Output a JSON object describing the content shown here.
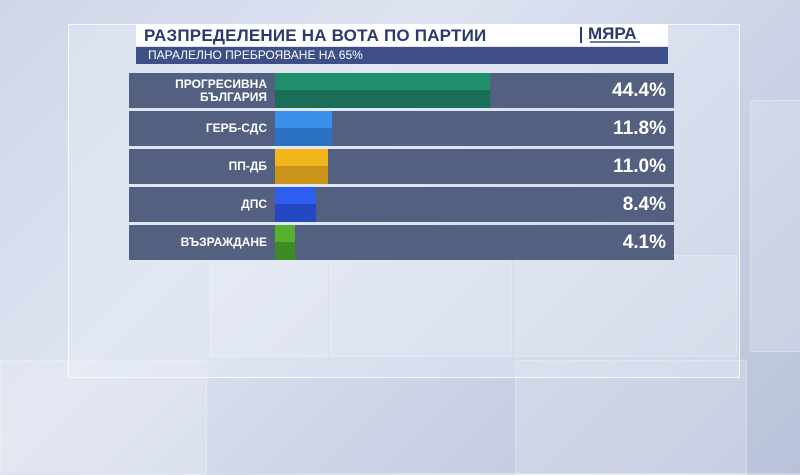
{
  "header": {
    "title": "РАЗПРЕДЕЛЕНИЕ НА ВОТА ПО ПАРТИИ",
    "subtitle": "ПАРАЛЕЛНО ПРЕБРОЯВАНЕ НА 65%",
    "logo": "МЯРА"
  },
  "colors": {
    "title_text": "#2a3a6b",
    "subtitle_bg": "#3d4f86",
    "row_bg": "#54607f"
  },
  "chart_data": {
    "type": "bar",
    "orientation": "horizontal",
    "title": "РАЗПРЕДЕЛЕНИЕ НА ВОТА ПО ПАРТИИ",
    "subtitle": "ПАРАЛЕЛНО ПРЕБРОЯВАНЕ НА 65%",
    "xlim": [
      0,
      60
    ],
    "grid": false,
    "categories": [
      "ПРОГРЕСИВНА БЪЛГАРИЯ",
      "ГЕРБ-СДС",
      "ПП-ДБ",
      "ДПС",
      "ВЪЗРАЖДАНЕ"
    ],
    "values": [
      44.4,
      11.8,
      11.0,
      8.4,
      4.1
    ],
    "value_labels": [
      "44.4%",
      "11.8%",
      "11.0%",
      "8.4%",
      "4.1%"
    ],
    "bar_colors": [
      {
        "top": "#1e8f6a",
        "bottom": "#1a6e58"
      },
      {
        "top": "#3a8fe8",
        "bottom": "#2b72c4"
      },
      {
        "top": "#f0b61c",
        "bottom": "#c99418"
      },
      {
        "top": "#2d5ef0",
        "bottom": "#2448c2"
      },
      {
        "top": "#56b02e",
        "bottom": "#3f8a22"
      }
    ]
  }
}
